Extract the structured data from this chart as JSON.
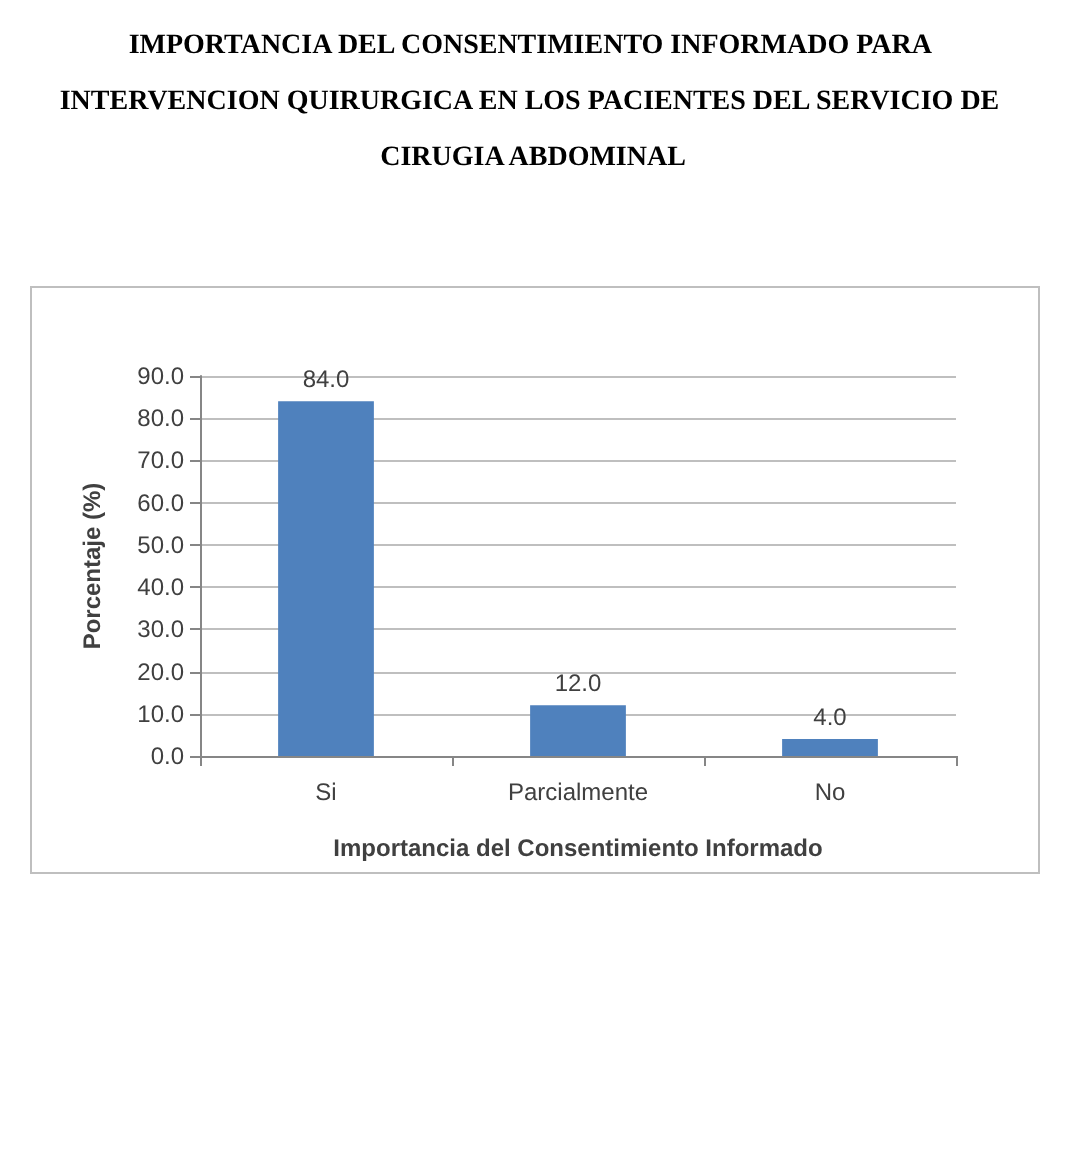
{
  "chart_data": {
    "type": "bar",
    "title": "IMPORTANCIA DEL CONSENTIMIENTO INFORMADO PARA INTERVENCION QUIRURGICA EN LOS PACIENTES DEL SERVICIO DE CIRUGIA ABDOMINAL",
    "xlabel": "Importancia del Consentimiento Informado",
    "ylabel": "Porcentaje (%)",
    "categories": [
      "Si",
      "Parcialmente",
      "No"
    ],
    "values": [
      84,
      12,
      4
    ],
    "color": "#4f81bd",
    "value_labels": [
      "84.0",
      "12.0",
      "4.0"
    ],
    "ylim": [
      0,
      90
    ],
    "yticks": [
      {
        "value": 0,
        "label": "0.0"
      },
      {
        "value": 10,
        "label": "10.0"
      },
      {
        "value": 20,
        "label": "20.0"
      },
      {
        "value": 30,
        "label": "30.0"
      },
      {
        "value": 40,
        "label": "40.0"
      },
      {
        "value": 50,
        "label": "50.0"
      },
      {
        "value": 60,
        "label": "60.0"
      },
      {
        "value": 70,
        "label": "70.0"
      },
      {
        "value": 80,
        "label": "80.0"
      },
      {
        "value": 90,
        "label": "90.0"
      }
    ],
    "grid": true
  }
}
